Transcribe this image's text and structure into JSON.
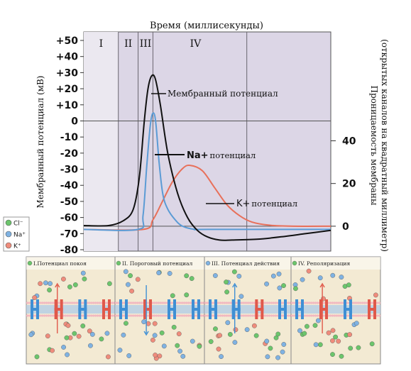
{
  "chart_data": {
    "type": "line",
    "title": "Время (миллисекунды)",
    "ylabel": "Мембранный потенциал (мВ)",
    "y2label_line1": "Проницаемость мембраны",
    "y2label_line2": "(открытых каналов на квадратный миллиметр)",
    "y_ticks": [
      "+50",
      "+40",
      "+30",
      "+20",
      "+10",
      "0",
      "-10",
      "-20",
      "-30",
      "-40",
      "-50",
      "-60",
      "-70",
      "-80"
    ],
    "ylim": [
      -80,
      50
    ],
    "y2_ticks": [
      "40",
      "20",
      "0"
    ],
    "y2lim": [
      -11,
      87
    ],
    "xlim": [
      0,
      10
    ],
    "phases": [
      "I",
      "II",
      "III",
      "IV"
    ],
    "phase_bounds": [
      0,
      1.4,
      2.2,
      2.8,
      6.6,
      10
    ],
    "series": [
      {
        "name": "Мембранный потенциал",
        "color": "#111111",
        "axis": "left",
        "x": [
          0,
          1.0,
          1.6,
          2.0,
          2.25,
          2.45,
          2.6,
          2.75,
          2.9,
          3.1,
          3.4,
          3.8,
          4.2,
          4.6,
          5.0,
          5.5,
          6.0,
          7.0,
          8.0,
          9.0,
          10
        ],
        "y": [
          -65,
          -65,
          -62,
          -55,
          -35,
          0,
          20,
          28,
          26,
          10,
          -20,
          -45,
          -60,
          -68,
          -72,
          -74,
          -74,
          -73.5,
          -72,
          -70,
          -68
        ]
      },
      {
        "name": "Na+ потенциал",
        "color": "#5b9bd5",
        "axis": "right",
        "x": [
          0,
          2.2,
          2.4,
          2.55,
          2.7,
          2.82,
          2.92,
          3.05,
          3.2,
          3.4,
          3.7,
          4.0,
          4.5,
          5.0,
          10
        ],
        "y": [
          -1.5,
          -1.5,
          5,
          28,
          48,
          53,
          48,
          30,
          15,
          8,
          3,
          0,
          -1.5,
          -1.5,
          -1.5
        ]
      },
      {
        "name": "K+ потенциал",
        "color": "#e8705a",
        "axis": "right",
        "x": [
          0,
          2.4,
          2.8,
          3.2,
          3.6,
          4.0,
          4.3,
          4.8,
          5.3,
          5.8,
          6.3,
          6.8,
          7.5,
          8.5,
          10
        ],
        "y": [
          -1.5,
          -1.5,
          3,
          12,
          21,
          27,
          28.5,
          26,
          18,
          10,
          5,
          2,
          0.5,
          0,
          0
        ]
      }
    ],
    "annotations": {
      "membrane": "Мембранный потенциал",
      "na_main": "Na+",
      "na_sub": "потенциал",
      "k_main": "K+",
      "k_sub": "потенциал"
    },
    "legend": [
      {
        "label": "Cl⁻",
        "color": "#6cc56c"
      },
      {
        "label": "Na⁺",
        "color": "#7fb2e2"
      },
      {
        "label": "K⁺",
        "color": "#ef8c7c"
      }
    ]
  },
  "panels": [
    {
      "title": "I.Потенциал покоя"
    },
    {
      "title": "II. Пороговый потенциал"
    },
    {
      "title": "III. Потенциал действия"
    },
    {
      "title": "IV. Реполяризация"
    }
  ],
  "colors": {
    "plot_bg": "#dcd6e6",
    "grid": "#6a6670",
    "channel_blue": "#3f8fd4",
    "channel_red": "#e0594a",
    "membrane_blue": "#a9c9e8",
    "membrane_pink": "#f2b8c0",
    "panel_bg": "#f3ead3"
  }
}
